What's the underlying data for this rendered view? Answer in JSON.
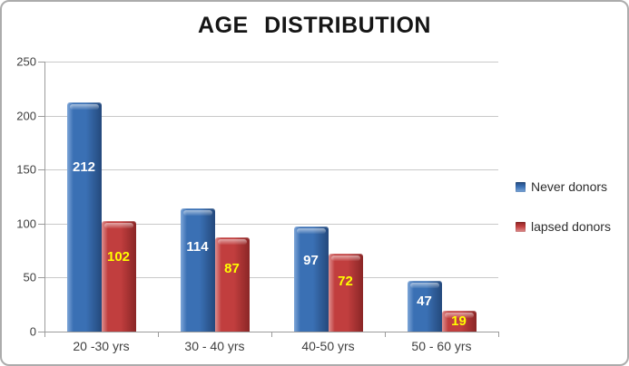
{
  "chart_data": {
    "type": "bar",
    "title": "AGE DISTRIBUTION",
    "categories": [
      "20 -30 yrs",
      "30 - 40 yrs",
      "40-50 yrs",
      "50 - 60 yrs"
    ],
    "series": [
      {
        "name": "Never donors",
        "values": [
          212,
          114,
          97,
          47
        ],
        "color": "#3A70B4",
        "color_light": "#7EA6D8",
        "color_dark": "#24497C",
        "label_color": "#FFFFFF"
      },
      {
        "name": "lapsed donors",
        "values": [
          102,
          87,
          72,
          19
        ],
        "color": "#C13E3E",
        "color_light": "#DE9090",
        "color_dark": "#8A2626",
        "label_color": "#FFFF00"
      }
    ],
    "y_ticks": [
      0,
      50,
      100,
      150,
      200,
      250
    ],
    "ylim": [
      0,
      250
    ],
    "grid": true,
    "legend_position": "right",
    "show_value_labels": true,
    "axis_text_color": "#3F3F3F"
  }
}
